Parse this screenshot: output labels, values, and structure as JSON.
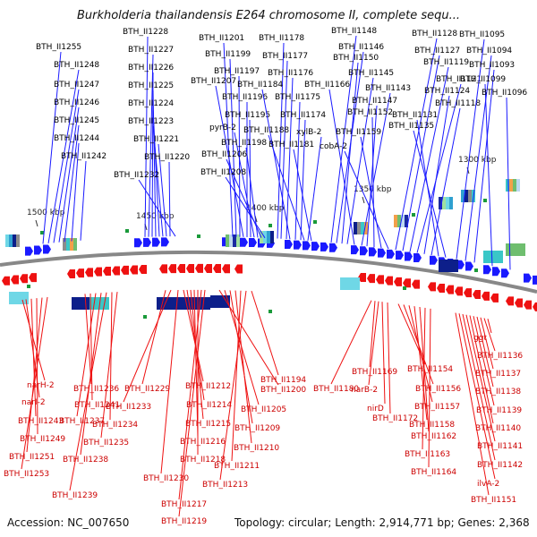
{
  "title": "Burkholderia thailandensis E264 chromosome II, complete sequ...",
  "footer": {
    "accession": "Accession: NC_007650",
    "topology": "Topology: circular; Length: 2,914,771 bp; Genes: 2,368"
  },
  "colors": {
    "forward": "#1a1aff",
    "reverse": "#ee1111",
    "backbone": "#888888",
    "feature_green": "#1a9a3a"
  },
  "scale_labels": [
    {
      "label": "1500 kbp"
    },
    {
      "label": "1450 kbp"
    },
    {
      "label": "1400 kbp"
    },
    {
      "label": "1350 kbp"
    },
    {
      "label": "1300 kbp"
    }
  ],
  "forward_genes": [
    "BTH_II1255",
    "BTH_II1248",
    "BTH_II1247",
    "BTH_II1246",
    "BTH_II1245",
    "BTH_II1244",
    "BTH_II1242",
    "BTH_II1228",
    "BTH_II1227",
    "BTH_II1226",
    "BTH_II1225",
    "BTH_II1224",
    "BTH_II1223",
    "BTH_II1221",
    "BTH_II1220",
    "BTH_II1232",
    "BTH_II1201",
    "BTH_II1199",
    "BTH_II1197",
    "BTH_II1207",
    "BTH_II1196",
    "BTH_II1195",
    "pyrB-2",
    "BTH_II1198",
    "BTH_II1206",
    "BTH_II1208",
    "BTH_II1178",
    "BTH_II1177",
    "BTH_II1176",
    "BTH_II1184",
    "BTH_II1175",
    "BTH_II1174",
    "BTH_II1188",
    "xylB-2",
    "BTH_II1181",
    "BTH_II1148",
    "BTH_II1146",
    "BTH_II1150",
    "BTH_II1145",
    "BTH_II1166",
    "BTH_II1143",
    "BTH_II1147",
    "BTH_II1152",
    "BTH_II1159",
    "cobA-2",
    "BTH_II1128",
    "BTH_II1127",
    "BTH_II1119",
    "BTH_II1121",
    "BTH_II1124",
    "BTH_II1118",
    "BTH_II1131",
    "BTH_II1135",
    "BTH_II1095",
    "BTH_II1094",
    "BTH_II1093",
    "BTH_II1099",
    "BTH_II1096"
  ],
  "reverse_genes": [
    "narH-2",
    "narI-2",
    "BTH_II1243",
    "BTH_II1249",
    "BTH_II1251",
    "BTH_II1253",
    "BTH_II1236",
    "BTH_II1241",
    "BTH_II1237",
    "BTH_II1238",
    "BTH_II1239",
    "BTH_II1234",
    "BTH_II1235",
    "BTH_II1229",
    "BTH_II1233",
    "BTH_II1230",
    "BTH_II1212",
    "BTH_II1214",
    "BTH_II1215",
    "BTH_II1216",
    "BTH_II1218",
    "BTH_II1217",
    "BTH_II1219",
    "BTH_II1200",
    "BTH_II1205",
    "BTH_II1209",
    "BTH_II1210",
    "BTH_II1211",
    "BTH_II1213",
    "BTH_II1194",
    "BTH_II1180",
    "BTH_II1169",
    "narB-2",
    "nirD",
    "BTH_II1172",
    "BTH_II1154",
    "BTH_II1156",
    "BTH_II1157",
    "BTH_II1158",
    "BTH_II1162",
    "BTH_II1163",
    "BTH_II1164",
    "ggt",
    "BTH_II1136",
    "BTH_II1137",
    "BTH_II1138",
    "BTH_II1139",
    "BTH_II1140",
    "BTH_II1141",
    "BTH_II1142",
    "ilvA-2",
    "BTH_II1151"
  ]
}
